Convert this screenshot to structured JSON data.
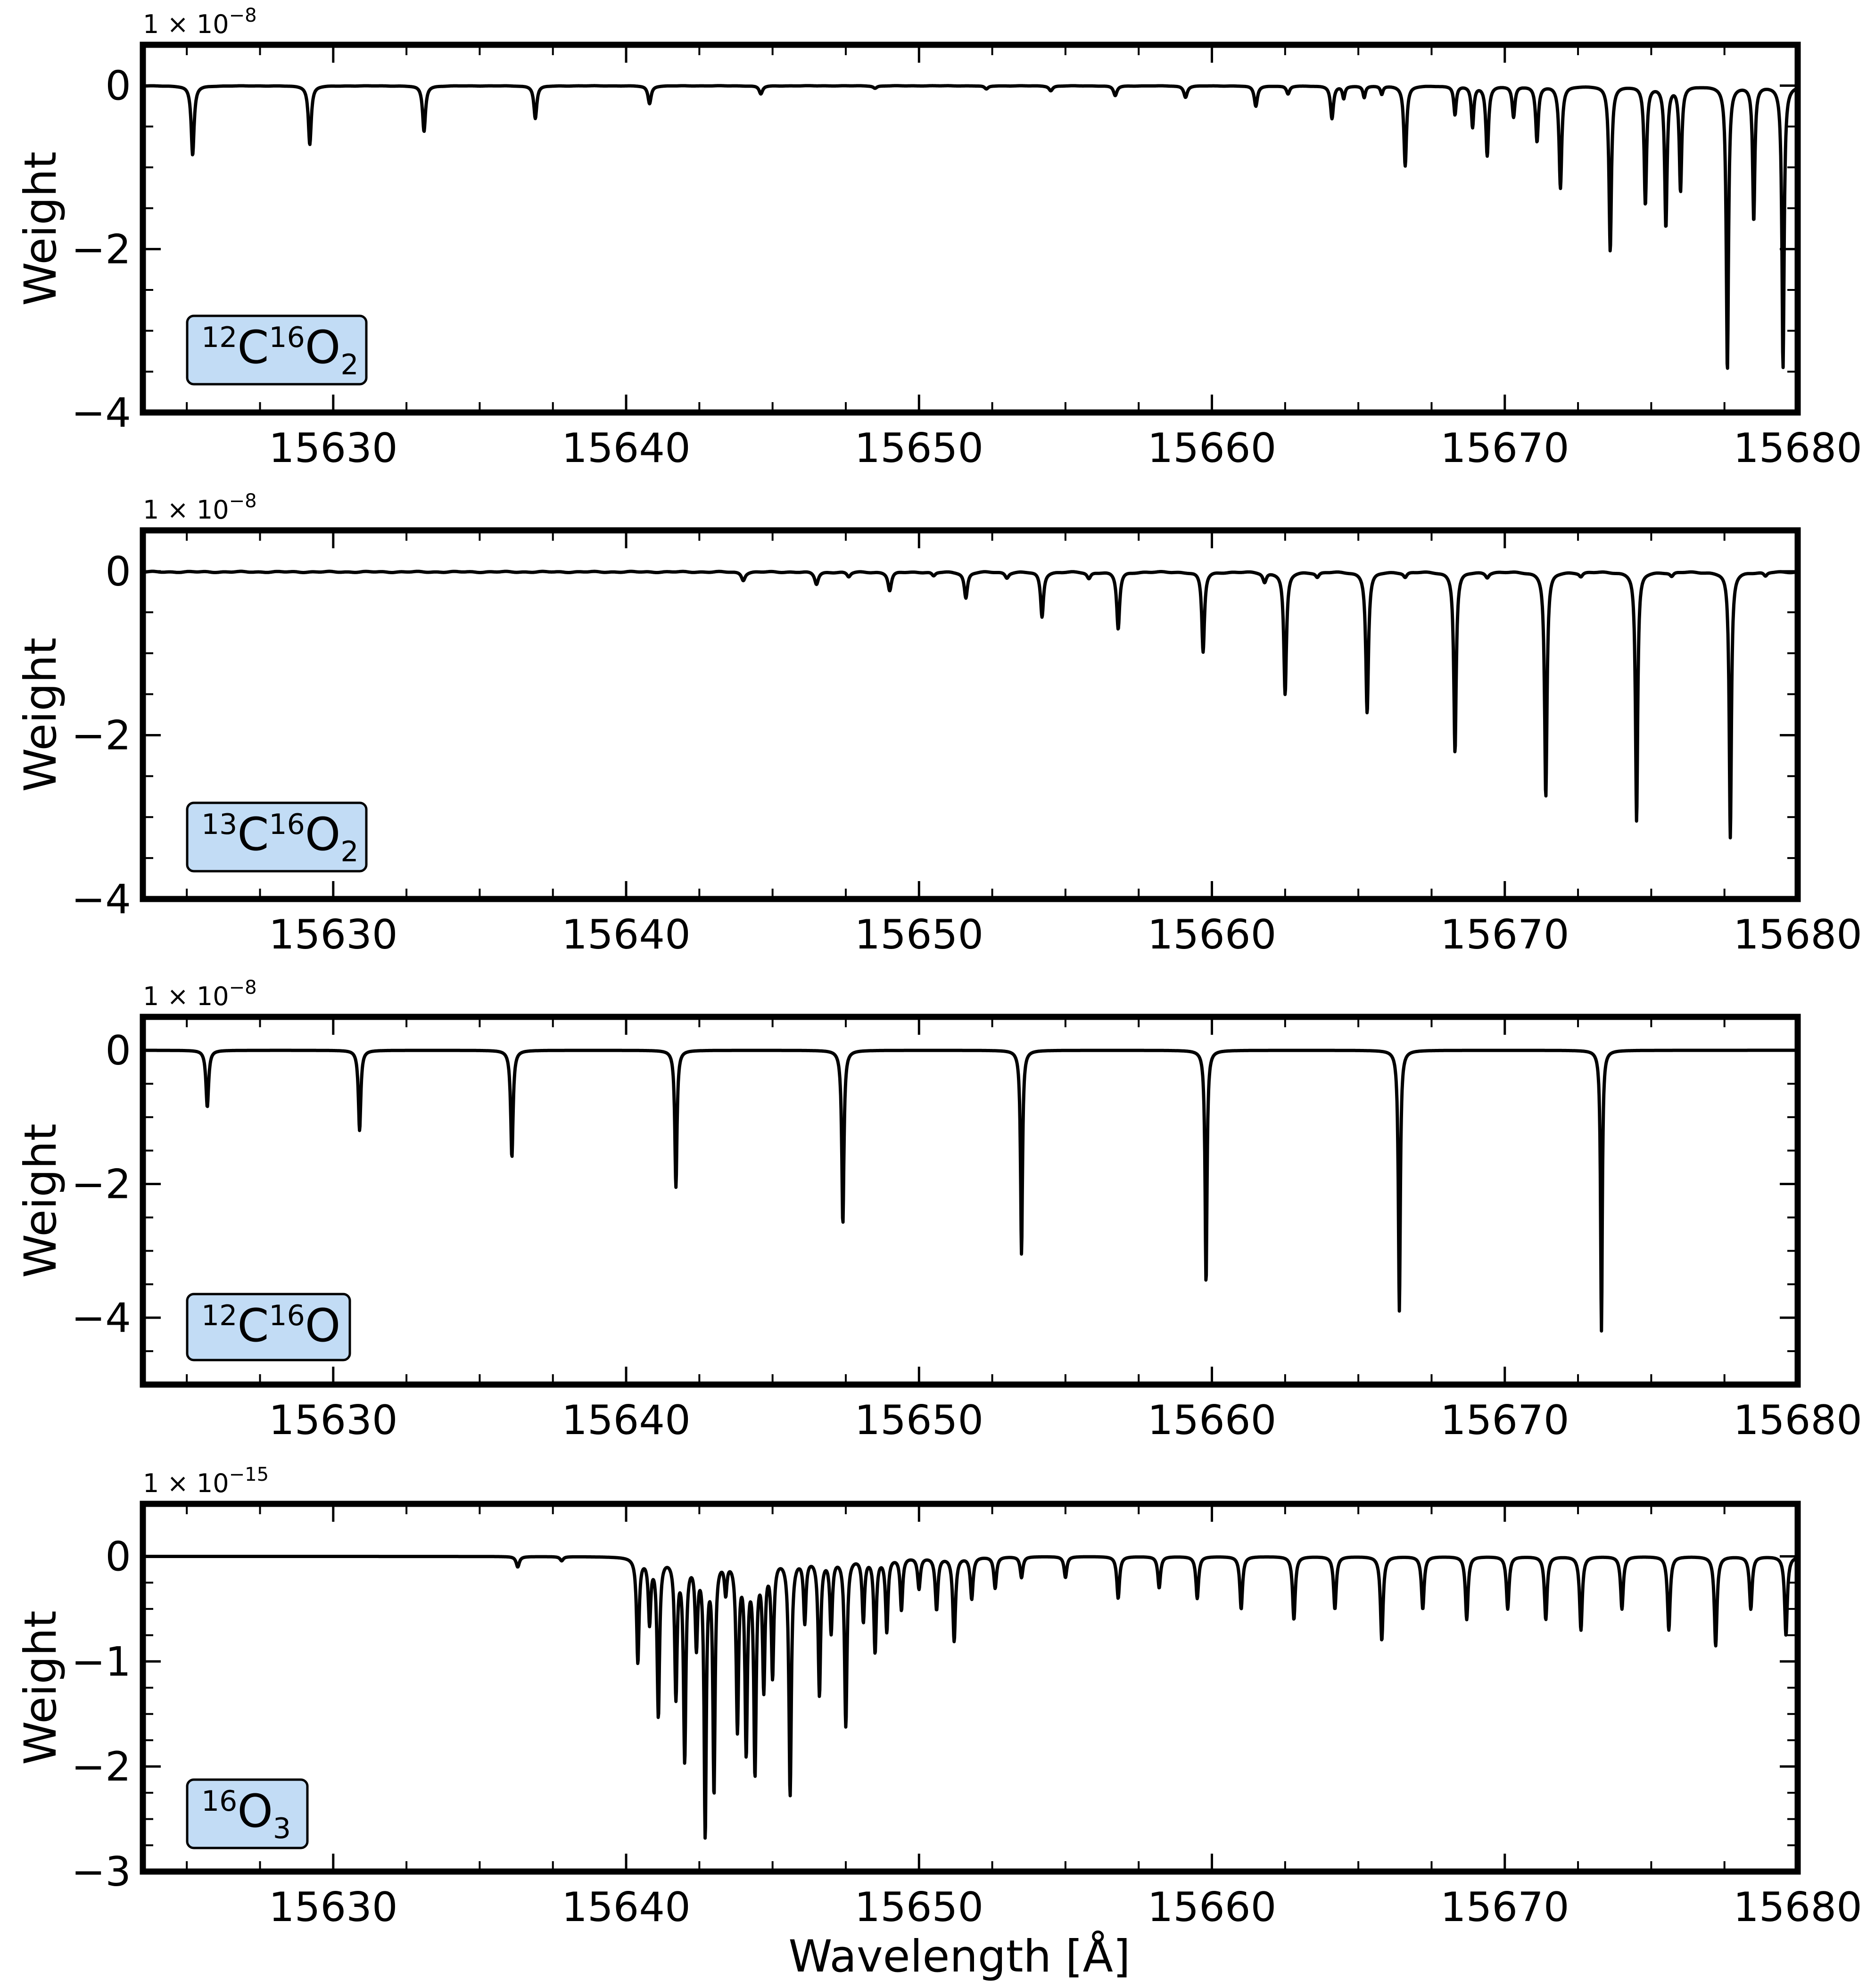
{
  "colors": {
    "legend_face": "#c2dcf5",
    "line": "#000000",
    "background": "#ffffff"
  },
  "figure": {
    "xlabel": "Wavelength [Å]"
  },
  "chart_data": [
    {
      "type": "line",
      "ylabel": "Weight",
      "offset_label": {
        "base": "1 × 10",
        "exponent": "−8"
      },
      "legend": {
        "pre": "12",
        "main1": "C",
        "mid": "16",
        "main2": "O",
        "sub": "2"
      },
      "xlim": [
        15623.5,
        15680
      ],
      "ylim": [
        -4,
        0.5
      ],
      "xticks": [
        15630,
        15640,
        15650,
        15660,
        15670,
        15680
      ],
      "xtick_labels": [
        "15630",
        "15640",
        "15650",
        "15660",
        "15670",
        "15680"
      ],
      "yticks": [
        0,
        -2,
        -4
      ],
      "ytick_labels": [
        "0",
        "−2",
        "−4"
      ],
      "baseline_noise": 0.004,
      "lines": [
        [
          15625.2,
          0.85,
          0.12
        ],
        [
          15629.2,
          0.72,
          0.12
        ],
        [
          15633.1,
          0.56,
          0.12
        ],
        [
          15636.9,
          0.4,
          0.12
        ],
        [
          15640.8,
          0.22,
          0.13
        ],
        [
          15644.6,
          0.1,
          0.14
        ],
        [
          15648.5,
          0.03,
          0.15
        ],
        [
          15652.3,
          0.04,
          0.15
        ],
        [
          15654.5,
          0.06,
          0.15
        ],
        [
          15656.7,
          0.12,
          0.14
        ],
        [
          15659.1,
          0.14,
          0.14
        ],
        [
          15661.5,
          0.25,
          0.13
        ],
        [
          15662.6,
          0.1,
          0.13
        ],
        [
          15664.1,
          0.4,
          0.12
        ],
        [
          15664.5,
          0.15,
          0.1
        ],
        [
          15665.2,
          0.14,
          0.1
        ],
        [
          15665.8,
          0.1,
          0.1
        ],
        [
          15666.6,
          0.98,
          0.11
        ],
        [
          15668.3,
          0.35,
          0.1
        ],
        [
          15668.9,
          0.5,
          0.1
        ],
        [
          15669.4,
          0.85,
          0.11
        ],
        [
          15670.3,
          0.38,
          0.11
        ],
        [
          15671.1,
          0.68,
          0.11
        ],
        [
          15671.9,
          1.25,
          0.11
        ],
        [
          15673.6,
          2.02,
          0.1
        ],
        [
          15674.8,
          1.45,
          0.1
        ],
        [
          15675.5,
          1.72,
          0.1
        ],
        [
          15676.0,
          1.28,
          0.1
        ],
        [
          15677.6,
          3.5,
          0.09
        ],
        [
          15678.5,
          1.65,
          0.09
        ],
        [
          15679.5,
          3.45,
          0.09
        ]
      ]
    },
    {
      "type": "line",
      "ylabel": "Weight",
      "offset_label": {
        "base": "1 × 10",
        "exponent": "−8"
      },
      "legend": {
        "pre": "13",
        "main1": "C",
        "mid": "16",
        "main2": "O",
        "sub": "2"
      },
      "xlim": [
        15623.5,
        15680
      ],
      "ylim": [
        -4,
        0.5
      ],
      "xticks": [
        15630,
        15640,
        15650,
        15660,
        15670,
        15680
      ],
      "xtick_labels": [
        "15630",
        "15640",
        "15650",
        "15660",
        "15670",
        "15680"
      ],
      "yticks": [
        0,
        -2,
        -4
      ],
      "ytick_labels": [
        "0",
        "−2",
        "−4"
      ],
      "baseline_noise": 0.015,
      "lines": [
        [
          15644.0,
          0.1,
          0.15
        ],
        [
          15646.5,
          0.15,
          0.15
        ],
        [
          15647.6,
          0.06,
          0.15
        ],
        [
          15649.0,
          0.23,
          0.14
        ],
        [
          15650.5,
          0.05,
          0.15
        ],
        [
          15651.6,
          0.32,
          0.13
        ],
        [
          15653.0,
          0.07,
          0.15
        ],
        [
          15654.2,
          0.55,
          0.12
        ],
        [
          15655.8,
          0.08,
          0.15
        ],
        [
          15656.8,
          0.7,
          0.12
        ],
        [
          15659.7,
          0.98,
          0.11
        ],
        [
          15661.8,
          0.12,
          0.14
        ],
        [
          15662.5,
          1.5,
          0.11
        ],
        [
          15663.6,
          0.06,
          0.14
        ],
        [
          15665.3,
          1.72,
          0.11
        ],
        [
          15666.6,
          0.06,
          0.14
        ],
        [
          15668.3,
          2.2,
          0.1
        ],
        [
          15669.4,
          0.06,
          0.14
        ],
        [
          15671.4,
          2.75,
          0.1
        ],
        [
          15672.6,
          0.05,
          0.14
        ],
        [
          15674.5,
          3.05,
          0.09
        ],
        [
          15675.7,
          0.05,
          0.14
        ],
        [
          15677.7,
          3.25,
          0.09
        ],
        [
          15678.9,
          0.05,
          0.14
        ]
      ]
    },
    {
      "type": "line",
      "ylabel": "Weight",
      "offset_label": {
        "base": "1 × 10",
        "exponent": "−8"
      },
      "legend": {
        "pre": "12",
        "main1": "C",
        "mid": "16",
        "main2": "O",
        "sub": ""
      },
      "xlim": [
        15623.5,
        15680
      ],
      "ylim": [
        -5,
        0.5
      ],
      "xticks": [
        15630,
        15640,
        15650,
        15660,
        15670,
        15680
      ],
      "xtick_labels": [
        "15630",
        "15640",
        "15650",
        "15660",
        "15670",
        "15680"
      ],
      "yticks": [
        0,
        -2,
        -4
      ],
      "ytick_labels": [
        "0",
        "−2",
        "−4"
      ],
      "baseline_noise": 0,
      "lines": [
        [
          15625.7,
          0.85,
          0.11
        ],
        [
          15630.9,
          1.2,
          0.1
        ],
        [
          15636.1,
          1.6,
          0.1
        ],
        [
          15641.7,
          2.05,
          0.09
        ],
        [
          15647.4,
          2.6,
          0.09
        ],
        [
          15653.5,
          3.05,
          0.08
        ],
        [
          15659.8,
          3.5,
          0.08
        ],
        [
          15666.4,
          3.9,
          0.08
        ],
        [
          15673.3,
          4.2,
          0.07
        ]
      ]
    },
    {
      "type": "line",
      "ylabel": "Weight",
      "offset_label": {
        "base": "1 × 10",
        "exponent": "−15"
      },
      "legend": {
        "pre": "16",
        "main1": "O",
        "mid": "",
        "main2": "",
        "sub": "3"
      },
      "xlim": [
        15623.5,
        15680
      ],
      "ylim": [
        -3,
        0.5
      ],
      "xticks": [
        15630,
        15640,
        15650,
        15660,
        15670,
        15680
      ],
      "xtick_labels": [
        "15630",
        "15640",
        "15650",
        "15660",
        "15670",
        "15680"
      ],
      "yticks": [
        0,
        -1,
        -2,
        -3
      ],
      "ytick_labels": [
        "0",
        "−1",
        "−2",
        "−3"
      ],
      "baseline_noise": 0,
      "lines": [
        [
          15636.3,
          0.1,
          0.13
        ],
        [
          15637.8,
          0.04,
          0.13
        ],
        [
          15640.4,
          1.0,
          0.1
        ],
        [
          15640.8,
          0.6,
          0.1
        ],
        [
          15641.1,
          1.5,
          0.1
        ],
        [
          15641.7,
          1.3,
          0.1
        ],
        [
          15642.0,
          1.9,
          0.1
        ],
        [
          15642.4,
          0.8,
          0.1
        ],
        [
          15642.7,
          2.6,
          0.09
        ],
        [
          15643.0,
          2.2,
          0.09
        ],
        [
          15643.4,
          0.3,
          0.1
        ],
        [
          15643.8,
          1.6,
          0.1
        ],
        [
          15644.1,
          1.8,
          0.1
        ],
        [
          15644.4,
          2.0,
          0.1
        ],
        [
          15644.7,
          1.2,
          0.1
        ],
        [
          15645.0,
          1.1,
          0.1
        ],
        [
          15645.6,
          2.25,
          0.1
        ],
        [
          15646.1,
          0.6,
          0.1
        ],
        [
          15646.6,
          1.3,
          0.1
        ],
        [
          15647.0,
          0.7,
          0.1
        ],
        [
          15647.5,
          1.6,
          0.1
        ],
        [
          15648.1,
          0.6,
          0.1
        ],
        [
          15648.5,
          0.9,
          0.1
        ],
        [
          15648.9,
          0.7,
          0.1
        ],
        [
          15649.4,
          0.5,
          0.1
        ],
        [
          15650.0,
          0.3,
          0.11
        ],
        [
          15650.6,
          0.5,
          0.11
        ],
        [
          15651.2,
          0.8,
          0.11
        ],
        [
          15651.8,
          0.4,
          0.11
        ],
        [
          15652.6,
          0.3,
          0.11
        ],
        [
          15653.5,
          0.2,
          0.11
        ],
        [
          15655.0,
          0.2,
          0.11
        ],
        [
          15656.8,
          0.4,
          0.11
        ],
        [
          15658.2,
          0.3,
          0.11
        ],
        [
          15659.5,
          0.4,
          0.11
        ],
        [
          15661.0,
          0.5,
          0.11
        ],
        [
          15662.8,
          0.6,
          0.11
        ],
        [
          15664.2,
          0.5,
          0.11
        ],
        [
          15665.8,
          0.8,
          0.11
        ],
        [
          15667.2,
          0.5,
          0.11
        ],
        [
          15668.7,
          0.6,
          0.11
        ],
        [
          15670.1,
          0.5,
          0.11
        ],
        [
          15671.4,
          0.6,
          0.11
        ],
        [
          15672.6,
          0.7,
          0.11
        ],
        [
          15674.0,
          0.5,
          0.11
        ],
        [
          15675.6,
          0.7,
          0.11
        ],
        [
          15677.2,
          0.85,
          0.11
        ],
        [
          15678.4,
          0.5,
          0.11
        ],
        [
          15679.6,
          0.75,
          0.11
        ]
      ]
    }
  ]
}
